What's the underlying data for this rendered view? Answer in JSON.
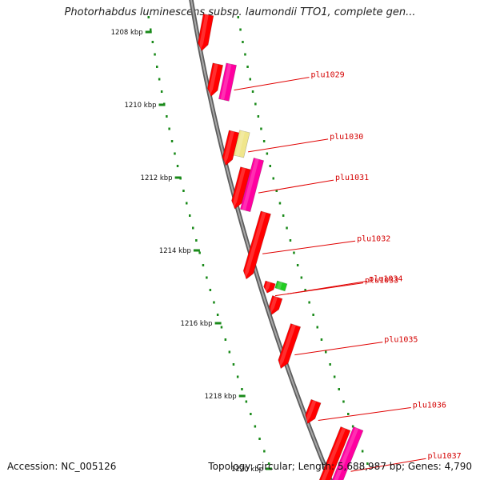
{
  "title": "Photorhabdus luminescens subsp. laumondii TTO1, complete gen...",
  "ticks": [
    {
      "label": "1208 kbp",
      "kb": 1208
    },
    {
      "label": "1210 kbp",
      "kb": 1210
    },
    {
      "label": "1212 kbp",
      "kb": 1212
    },
    {
      "label": "1214 kbp",
      "kb": 1214
    },
    {
      "label": "1216 kbp",
      "kb": 1216
    },
    {
      "label": "1218 kbp",
      "kb": 1218
    },
    {
      "label": "1220 kbp",
      "kb": 1220
    }
  ],
  "genes": [
    {
      "name": "plu1029",
      "start_kb": 1208.85,
      "end_kb": 1209.9,
      "color": "#ff00a0",
      "strand": 2
    },
    {
      "name": "plu1030",
      "start_kb": 1210.7,
      "end_kb": 1211.45,
      "color": "#f0e68c",
      "strand": 2
    },
    {
      "name": "plu1031",
      "start_kb": 1211.45,
      "end_kb": 1212.95,
      "color": "#ff00a0",
      "strand": 2
    },
    {
      "name": "plu1032",
      "start_kb": 1212.9,
      "end_kb": 1214.85,
      "color": "#ff0000",
      "strand": 1
    },
    {
      "name": "plu1033",
      "start_kb": 1214.85,
      "end_kb": 1215.2,
      "color": "#ff0000",
      "strand": 1
    },
    {
      "name": "plu1034",
      "start_kb": 1214.85,
      "end_kb": 1215.1,
      "color": "#22cc22",
      "strand": 2
    },
    {
      "name": "plu1035",
      "start_kb": 1216.0,
      "end_kb": 1217.3,
      "color": "#ff0000",
      "strand": 1
    },
    {
      "name": "plu1036",
      "start_kb": 1218.1,
      "end_kb": 1218.8,
      "color": "#ff0000",
      "strand": 1
    },
    {
      "name": "plu1037",
      "start_kb": 1218.8,
      "end_kb": 1220.9,
      "color": "#ff00a0",
      "strand": 2
    }
  ],
  "unlabeled_features": [
    {
      "start_kb": 1207.5,
      "end_kb": 1208.55,
      "color": "#ff0000",
      "strand": 1
    },
    {
      "start_kb": 1208.85,
      "end_kb": 1209.8,
      "color": "#ff0000",
      "strand": 1
    },
    {
      "start_kb": 1210.7,
      "end_kb": 1211.7,
      "color": "#ff0000",
      "strand": 1
    },
    {
      "start_kb": 1211.7,
      "end_kb": 1212.9,
      "color": "#ff0000",
      "strand": 1
    },
    {
      "start_kb": 1215.25,
      "end_kb": 1215.8,
      "color": "#ff0000",
      "strand": 1
    },
    {
      "start_kb": 1218.8,
      "end_kb": 1220.9,
      "color": "#ff0000",
      "strand": 1
    }
  ],
  "footer": {
    "accession": "Accession: NC_005126",
    "summary": "Topology: circular; Length: 5,688,987 bp; Genes: 4,790"
  },
  "colors": {
    "backbone": "#808080",
    "tick": "#1a8a1a",
    "label": "#d40000",
    "leader": "#e00000"
  }
}
